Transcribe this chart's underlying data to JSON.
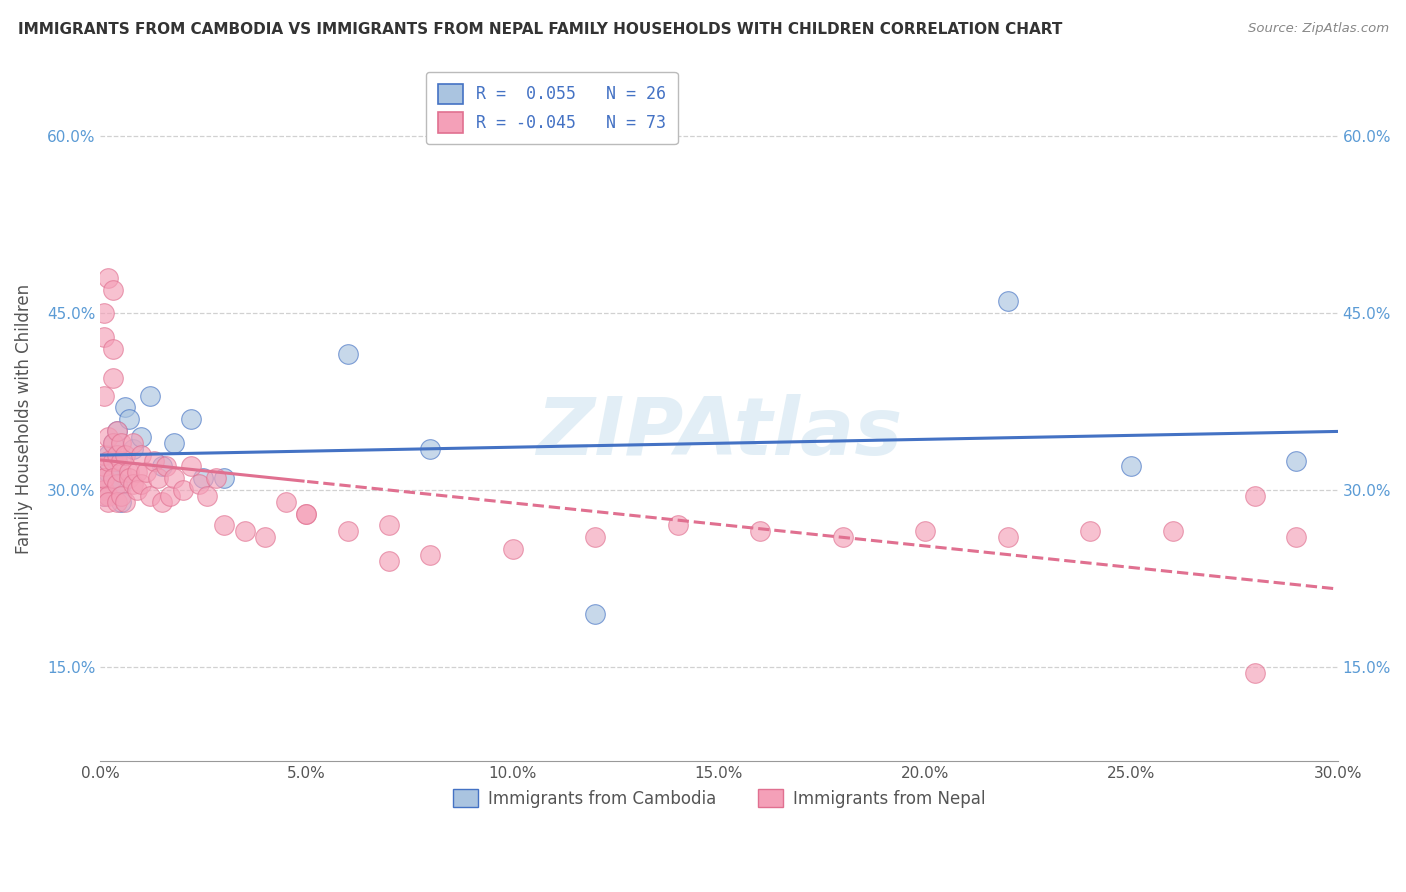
{
  "title": "IMMIGRANTS FROM CAMBODIA VS IMMIGRANTS FROM NEPAL FAMILY HOUSEHOLDS WITH CHILDREN CORRELATION CHART",
  "source": "Source: ZipAtlas.com",
  "ylabel": "Family Households with Children",
  "xlim": [
    0.0,
    0.3
  ],
  "ylim": [
    0.07,
    0.65
  ],
  "yticks": [
    0.15,
    0.3,
    0.45,
    0.6
  ],
  "ytick_labels": [
    "15.0%",
    "30.0%",
    "45.0%",
    "60.0%"
  ],
  "xticks": [
    0.0,
    0.05,
    0.1,
    0.15,
    0.2,
    0.25,
    0.3
  ],
  "xtick_labels": [
    "0.0%",
    "5.0%",
    "10.0%",
    "15.0%",
    "20.0%",
    "25.0%",
    "30.0%"
  ],
  "cambodia_color": "#aac4e0",
  "nepal_color": "#f4a0b8",
  "cambodia_line_color": "#4472c4",
  "nepal_line_color": "#e07090",
  "legend_R_cambodia": "R =  0.055",
  "legend_N_cambodia": "N = 26",
  "legend_R_nepal": "R = -0.045",
  "legend_N_nepal": "N = 73",
  "legend_label_cambodia": "Immigrants from Cambodia",
  "legend_label_nepal": "Immigrants from Nepal",
  "watermark": "ZIPAtlas",
  "background_color": "#ffffff",
  "cambodia_x": [
    0.001,
    0.001,
    0.002,
    0.002,
    0.003,
    0.003,
    0.004,
    0.004,
    0.005,
    0.005,
    0.006,
    0.007,
    0.008,
    0.01,
    0.012,
    0.015,
    0.018,
    0.022,
    0.025,
    0.03,
    0.06,
    0.08,
    0.12,
    0.22,
    0.25,
    0.29
  ],
  "cambodia_y": [
    0.31,
    0.295,
    0.33,
    0.315,
    0.34,
    0.31,
    0.35,
    0.325,
    0.305,
    0.29,
    0.37,
    0.36,
    0.335,
    0.345,
    0.38,
    0.32,
    0.34,
    0.36,
    0.31,
    0.31,
    0.415,
    0.335,
    0.195,
    0.46,
    0.32,
    0.325
  ],
  "nepal_x": [
    0.001,
    0.001,
    0.001,
    0.001,
    0.001,
    0.001,
    0.001,
    0.001,
    0.001,
    0.002,
    0.002,
    0.002,
    0.002,
    0.002,
    0.003,
    0.003,
    0.003,
    0.003,
    0.003,
    0.003,
    0.004,
    0.004,
    0.004,
    0.004,
    0.005,
    0.005,
    0.005,
    0.005,
    0.006,
    0.006,
    0.007,
    0.007,
    0.008,
    0.008,
    0.009,
    0.009,
    0.01,
    0.01,
    0.011,
    0.012,
    0.013,
    0.014,
    0.015,
    0.016,
    0.017,
    0.018,
    0.02,
    0.022,
    0.024,
    0.026,
    0.028,
    0.03,
    0.035,
    0.04,
    0.045,
    0.05,
    0.06,
    0.07,
    0.08,
    0.1,
    0.12,
    0.14,
    0.16,
    0.18,
    0.2,
    0.22,
    0.24,
    0.26,
    0.28,
    0.29,
    0.05,
    0.07,
    0.28
  ],
  "nepal_y": [
    0.31,
    0.3,
    0.32,
    0.295,
    0.45,
    0.43,
    0.38,
    0.33,
    0.31,
    0.325,
    0.295,
    0.345,
    0.48,
    0.29,
    0.325,
    0.31,
    0.34,
    0.47,
    0.42,
    0.395,
    0.33,
    0.305,
    0.35,
    0.29,
    0.325,
    0.315,
    0.295,
    0.34,
    0.33,
    0.29,
    0.315,
    0.31,
    0.34,
    0.305,
    0.315,
    0.3,
    0.33,
    0.305,
    0.315,
    0.295,
    0.325,
    0.31,
    0.29,
    0.32,
    0.295,
    0.31,
    0.3,
    0.32,
    0.305,
    0.295,
    0.31,
    0.27,
    0.265,
    0.26,
    0.29,
    0.28,
    0.265,
    0.27,
    0.245,
    0.25,
    0.26,
    0.27,
    0.265,
    0.26,
    0.265,
    0.26,
    0.265,
    0.265,
    0.145,
    0.26,
    0.28,
    0.24,
    0.295
  ]
}
